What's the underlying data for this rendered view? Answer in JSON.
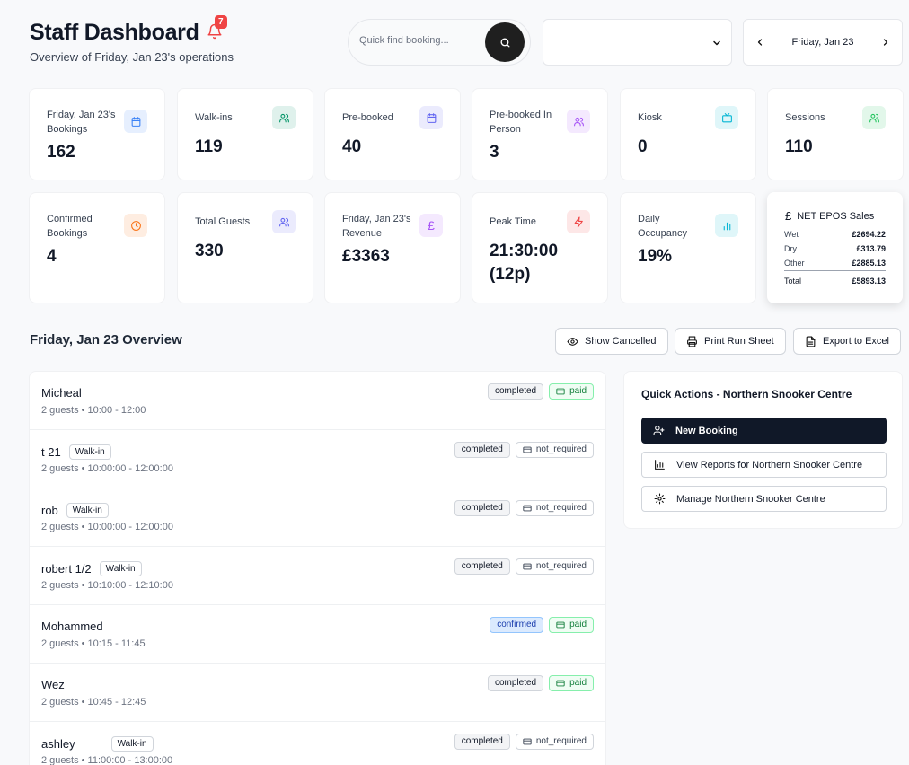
{
  "header": {
    "title": "Staff Dashboard",
    "notification_count": "7",
    "subtitle": "Overview of Friday, Jan 23's operations"
  },
  "search": {
    "placeholder": "Quick find booking..."
  },
  "venue_select": {
    "value": ""
  },
  "date_nav": {
    "date": "Friday, Jan 23"
  },
  "stats": [
    {
      "label": "Friday, Jan 23's Bookings",
      "value": "162",
      "icon": "calendar-icon",
      "color": "#3b82f6"
    },
    {
      "label": "Walk-ins",
      "value": "119",
      "icon": "users-icon",
      "color": "#059669"
    },
    {
      "label": "Pre-booked",
      "value": "40",
      "icon": "calendar-icon",
      "color": "#6366f1"
    },
    {
      "label": "Pre-booked In Person",
      "value": "3",
      "icon": "users-icon",
      "color": "#a855f7"
    },
    {
      "label": "Kiosk",
      "value": "0",
      "icon": "tv-icon",
      "color": "#06b6d4"
    },
    {
      "label": "Sessions",
      "value": "110",
      "icon": "users-icon",
      "color": "#22c55e"
    },
    {
      "label": "Confirmed Bookings",
      "value": "4",
      "icon": "clock-icon",
      "color": "#f97316"
    },
    {
      "label": "Total Guests",
      "value": "330",
      "icon": "users-icon",
      "color": "#6366f1"
    },
    {
      "label": "Friday, Jan 23's Revenue",
      "value": "£3363",
      "icon": "pound-icon",
      "color": "#a855f7"
    },
    {
      "label": "Peak Time",
      "value": "21:30:00 (12p)",
      "icon": "bolt-icon",
      "color": "#ef4444"
    },
    {
      "label": "Daily Occupancy",
      "value": "19%",
      "icon": "bar-chart-icon",
      "color": "#06b6d4"
    }
  ],
  "epos": {
    "title": "NET EPOS Sales",
    "rows": [
      {
        "label": "Wet",
        "value": "£2694.22"
      },
      {
        "label": "Dry",
        "value": "£313.79"
      },
      {
        "label": "Other",
        "value": "£2885.13"
      }
    ],
    "total_label": "Total",
    "total_value": "£5893.13"
  },
  "overview": {
    "title": "Friday, Jan 23 Overview",
    "show_cancelled": "Show Cancelled",
    "print_run_sheet": "Print Run Sheet",
    "export_excel": "Export to Excel"
  },
  "bookings": [
    {
      "name": "Micheal",
      "walkin": "",
      "meta": "2 guests • 10:00 - 12:00",
      "status": "completed",
      "payment": "paid"
    },
    {
      "name": "t 21",
      "walkin": "Walk-in",
      "meta": "2 guests • 10:00:00 - 12:00:00",
      "status": "completed",
      "payment": "not_required"
    },
    {
      "name": "rob",
      "walkin": "Walk-in",
      "meta": "2 guests • 10:00:00 - 12:00:00",
      "status": "completed",
      "payment": "not_required"
    },
    {
      "name": "robert 1/2",
      "walkin": "Walk-in",
      "meta": "2 guests • 10:10:00 - 12:10:00",
      "status": "completed",
      "payment": "not_required"
    },
    {
      "name": "Mohammed",
      "walkin": "",
      "meta": "2 guests • 10:15 - 11:45",
      "status": "confirmed",
      "payment": "paid"
    },
    {
      "name": "Wez",
      "walkin": "",
      "meta": "2 guests • 10:45 - 12:45",
      "status": "completed",
      "payment": "paid"
    },
    {
      "name": "ashley",
      "walkin": "Walk-in",
      "meta": "2 guests • 11:00:00 - 13:00:00",
      "status": "completed",
      "payment": "not_required"
    }
  ],
  "quick_actions": {
    "title": "Quick Actions - Northern Snooker Centre",
    "new_booking": "New Booking",
    "view_reports": "View Reports for Northern Snooker Centre",
    "manage": "Manage Northern Snooker Centre"
  }
}
